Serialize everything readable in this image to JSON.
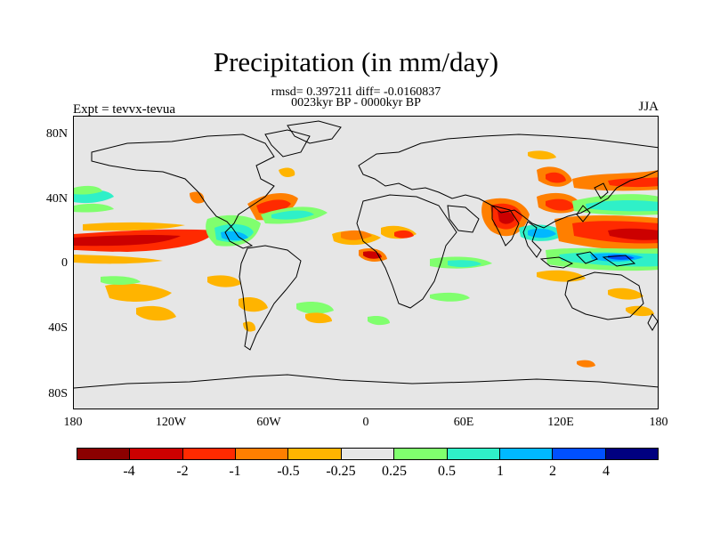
{
  "header": {
    "title": "Precipitation (in mm/day)",
    "stats": "rmsd= 0.397211 diff= -0.0160837",
    "period": "0023kyr BP - 0000kyr BP",
    "experiment": "Expt = tevvx-tevua",
    "season": "JJA"
  },
  "axes": {
    "y_ticks": [
      "80N",
      "40N",
      "0",
      "40S",
      "80S"
    ],
    "x_ticks": [
      "180",
      "120W",
      "60W",
      "0",
      "60E",
      "120E",
      "180"
    ]
  },
  "colorbar": {
    "colors": [
      "#8b0000",
      "#cc0000",
      "#ff2a00",
      "#ff7f00",
      "#ffb400",
      "#e6e6e6",
      "#80ff6e",
      "#2ff0c8",
      "#00b8ff",
      "#0050ff",
      "#000080"
    ],
    "labels": [
      "-4",
      "-2",
      "-1",
      "-0.5",
      "-0.25",
      "0.25",
      "0.5",
      "1",
      "2",
      "4"
    ]
  }
}
